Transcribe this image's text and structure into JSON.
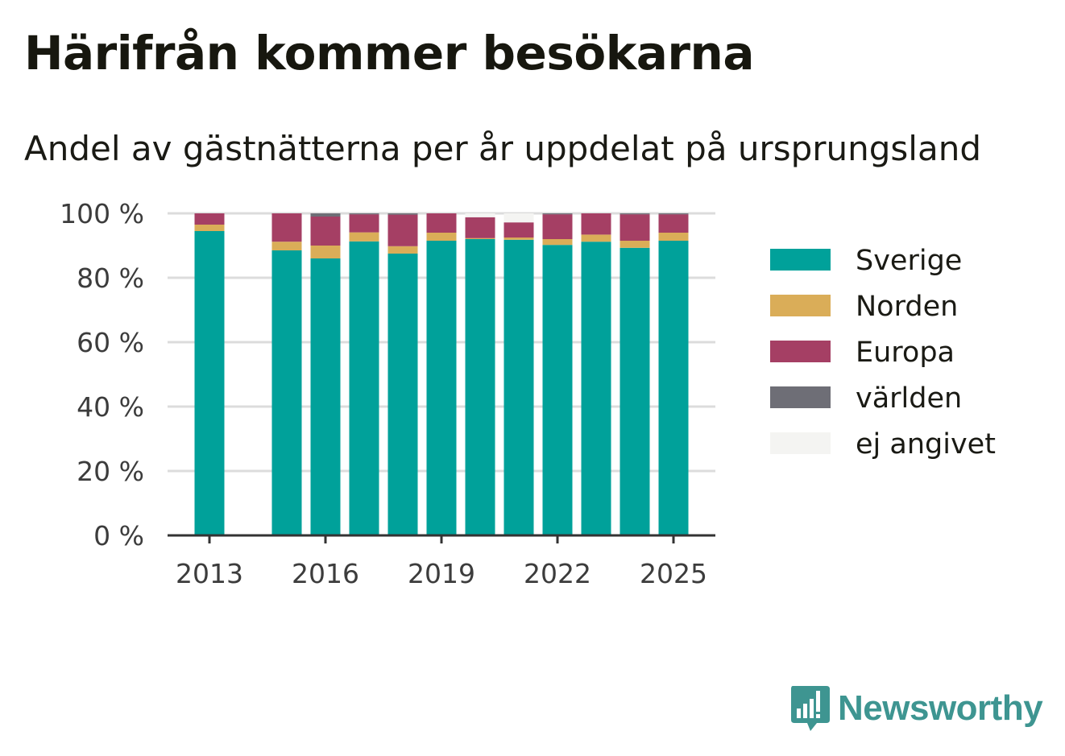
{
  "title": "Härifrån kommer besökarna",
  "subtitle": "Andel av gästnätterna per år uppdelat på ursprungsland",
  "brand": {
    "name": "Newsworthy",
    "color": "#3e9591",
    "icon": "bar-chart-speech-bubble-icon"
  },
  "chart_data": {
    "type": "bar",
    "stacked": true,
    "categories": [
      "2013",
      "2014",
      "2015",
      "2016",
      "2017",
      "2018",
      "2019",
      "2020",
      "2021",
      "2022",
      "2023",
      "2024",
      "2025"
    ],
    "x_tick_labels": [
      "2013",
      "2016",
      "2019",
      "2022",
      "2025"
    ],
    "y_tick_labels": [
      "0 %",
      "20 %",
      "40 %",
      "60 %",
      "80 %",
      "100 %"
    ],
    "ylim": [
      0,
      100
    ],
    "grid": true,
    "legend_position": "right",
    "series": [
      {
        "name": "Sverige",
        "color": "#00a19a",
        "values": [
          94.5,
          null,
          88.5,
          86,
          91.3,
          87.5,
          91.5,
          92,
          91.8,
          90.2,
          91.2,
          89.3,
          91.5
        ]
      },
      {
        "name": "Norden",
        "color": "#daad58",
        "values": [
          2,
          null,
          2.7,
          4,
          2.8,
          2.3,
          2.5,
          0.3,
          0.7,
          1.8,
          2.2,
          2.2,
          2.5
        ]
      },
      {
        "name": "Europa",
        "color": "#a53f64",
        "values": [
          3.5,
          null,
          8.8,
          9,
          5.6,
          9.8,
          6,
          6.5,
          4.7,
          7.7,
          6.6,
          8.2,
          5.7
        ]
      },
      {
        "name": "världen",
        "color": "#6e6e76",
        "values": [
          0,
          null,
          0,
          1,
          0.3,
          0.4,
          0,
          0,
          0,
          0.3,
          0,
          0.3,
          0.3
        ]
      },
      {
        "name": "ej angivet",
        "color": "#f4f4f2",
        "values": [
          0,
          null,
          0,
          0,
          0,
          0,
          0,
          1.2,
          2.8,
          0,
          0,
          0,
          0
        ]
      }
    ]
  }
}
